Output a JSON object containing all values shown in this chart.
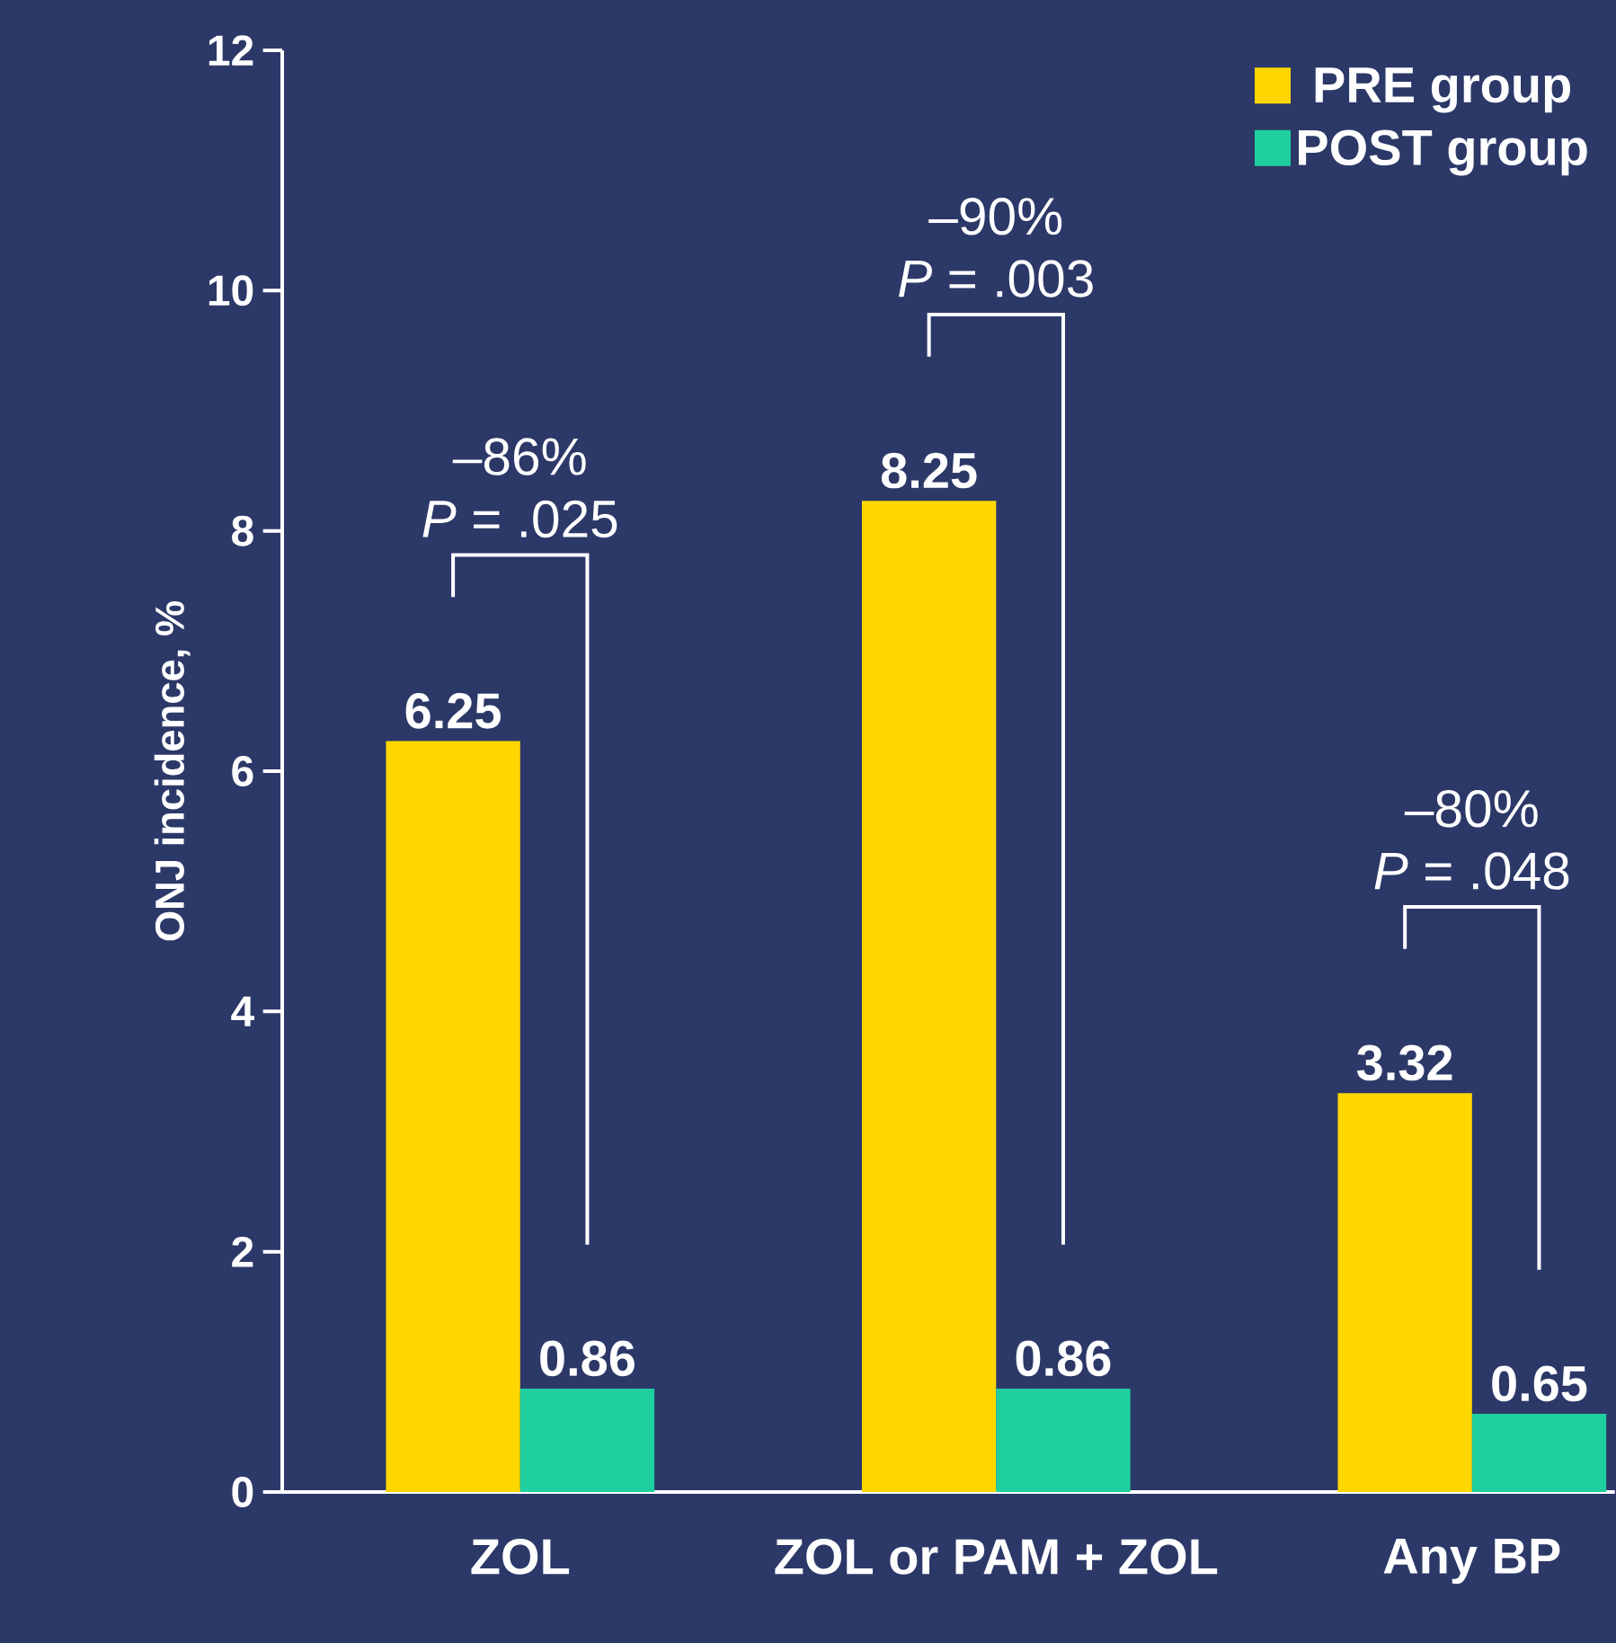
{
  "chart_data": {
    "type": "bar",
    "ylabel": "ONJ incidence, %",
    "categories": [
      "ZOL",
      "ZOL or PAM + ZOL",
      "Any BP"
    ],
    "series": [
      {
        "name": "PRE group",
        "color": "#ffd700",
        "values": [
          6.25,
          8.25,
          3.32
        ]
      },
      {
        "name": "POST group",
        "color": "#1fcf9f",
        "values": [
          0.86,
          0.86,
          0.65
        ]
      }
    ],
    "ylim": [
      0,
      12
    ],
    "yticks": [
      0,
      2,
      4,
      6,
      8,
      10,
      12
    ],
    "data_labels": true,
    "legend": "top right",
    "grid": false,
    "annotations": [
      "–86%",
      "*P* = .025",
      "–90%",
      "*P* = .003",
      "–80%",
      "*P* = .048"
    ]
  }
}
